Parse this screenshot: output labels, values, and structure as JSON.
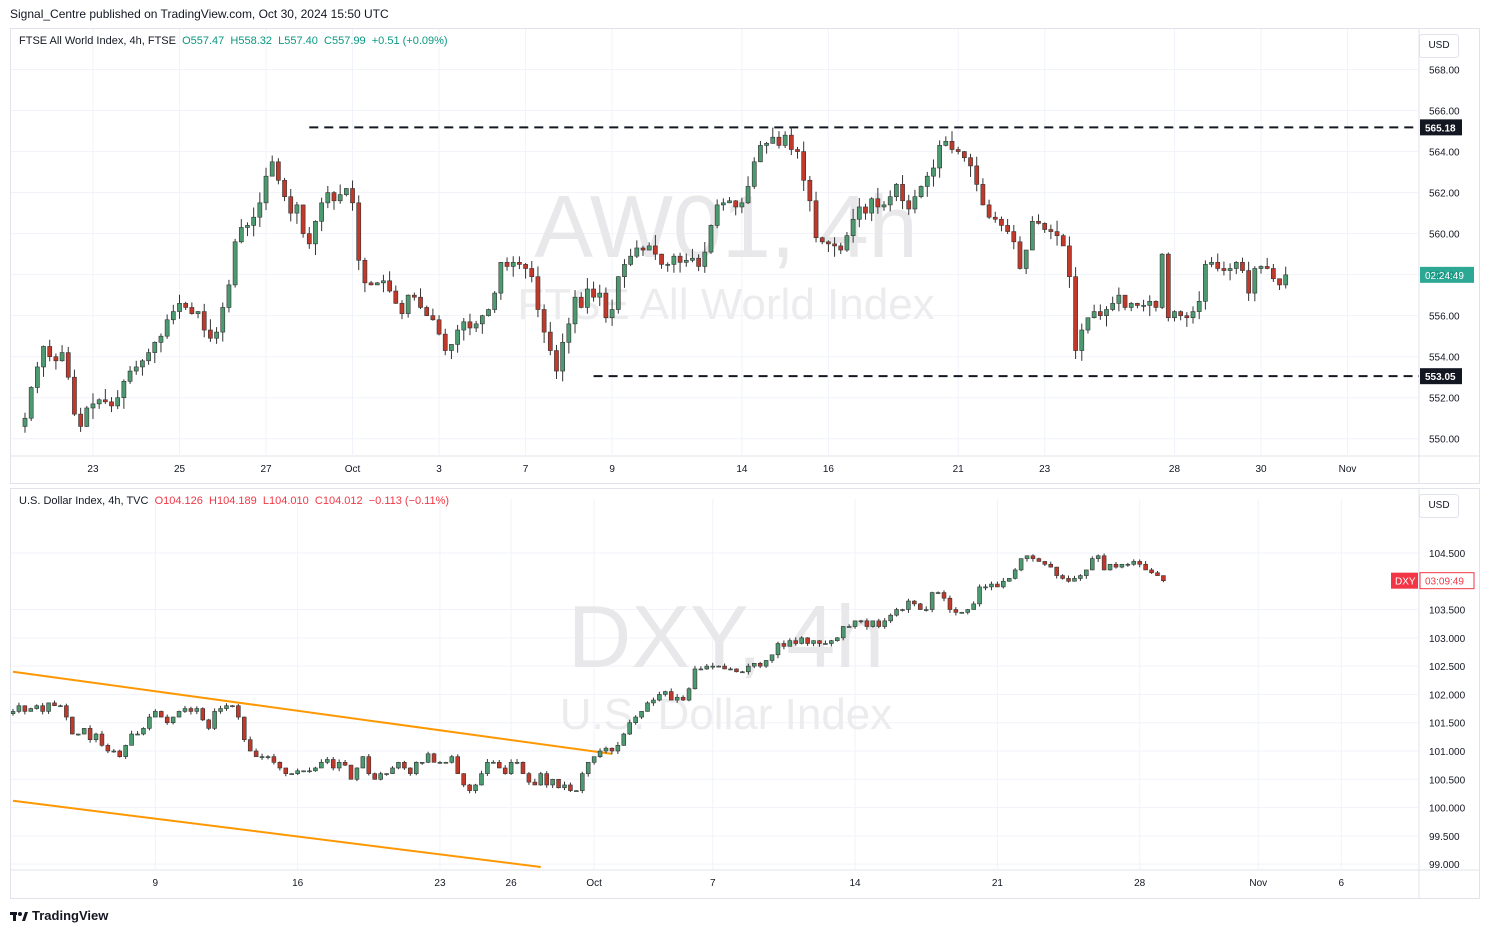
{
  "header": {
    "published_by": "Signal_Centre published on TradingView.com, Oct 30, 2024 15:50 UTC"
  },
  "footer": {
    "brand": "TradingView"
  },
  "colors": {
    "up": "#089981",
    "down": "#f23645",
    "body_up": "#4c9a70",
    "body_down": "#c0392b",
    "grid": "#f0f3fa",
    "trend": "#ff9800",
    "level": "#131722"
  },
  "panes": [
    {
      "id": "ftse",
      "symbol": "FTSE All World Index",
      "interval": "4h",
      "exchange": "FTSE",
      "ohlc": {
        "o": "O557.47",
        "h": "H558.32",
        "l": "L557.40",
        "c": "C557.99",
        "chg": "+0.51 (+0.09%)"
      },
      "currency": "USD",
      "watermark_main": "AW01, 4h",
      "watermark_sub": "FTSE All World Index",
      "countdown_label": "02:24:49",
      "levels": [
        {
          "label": "565.18",
          "value": 565.18
        },
        {
          "label": "553.05",
          "value": 553.05
        }
      ]
    },
    {
      "id": "dxy",
      "symbol": "U.S. Dollar Index",
      "interval": "4h",
      "exchange": "TVC",
      "ohlc": {
        "o": "O104.126",
        "h": "H104.189",
        "l": "L104.010",
        "c": "C104.012",
        "chg": "−0.113 (−0.11%)"
      },
      "currency": "USD",
      "watermark_main": "DXY, 4h",
      "watermark_sub": "U.S. Dollar Index",
      "countdown_ticker": "DXY",
      "countdown_label": "03:09:49"
    }
  ],
  "chart_data": [
    {
      "type": "candlestick",
      "title": "FTSE All World Index, 4h, FTSE",
      "ylim": [
        549.5,
        569.0
      ],
      "y_ticks": [
        "568.00",
        "566.00",
        "564.00",
        "562.00",
        "560.00",
        "558.00",
        "556.00",
        "554.00",
        "552.00",
        "550.00"
      ],
      "y_tick_values": [
        568,
        566,
        564,
        562,
        560,
        558,
        556,
        554,
        552,
        550
      ],
      "x_ticks": [
        "23",
        "25",
        "27",
        "Oct",
        "3",
        "7",
        "9",
        "14",
        "16",
        "21",
        "23",
        "28",
        "30",
        "Nov"
      ],
      "x_tick_index": [
        11,
        25,
        39,
        53,
        67,
        81,
        95,
        116,
        130,
        151,
        165,
        186,
        200,
        214
      ],
      "series": [
        {
          "values": [
            551.0,
            552.5,
            553.5,
            554.5,
            554.0,
            553.8,
            554.2,
            553.0,
            551.2,
            550.6,
            551.5,
            551.7,
            551.9,
            551.8,
            551.6,
            552.0,
            552.8,
            553.3,
            553.5,
            553.8,
            554.2,
            554.7,
            555.0,
            555.8,
            556.2,
            556.6,
            556.4,
            556.1,
            556.2,
            555.3,
            554.9,
            555.2,
            556.4,
            557.5,
            559.6,
            560.3,
            560.4,
            560.8,
            561.5,
            562.8,
            563.5,
            562.6,
            561.8,
            561.0,
            561.4,
            560.0,
            559.5,
            560.6,
            561.5,
            562.0,
            561.6,
            561.9,
            562.2,
            561.5,
            558.7,
            557.6,
            557.5,
            557.6,
            557.7,
            557.2,
            556.6,
            556.1,
            557.0,
            556.9,
            556.4,
            556.0,
            555.8,
            555.1,
            554.3,
            554.6,
            555.3,
            555.7,
            555.4,
            555.6,
            556.0,
            556.3,
            557.1,
            558.6,
            558.4,
            558.6,
            558.5,
            558.3,
            557.9,
            556.3,
            555.2,
            554.3,
            553.3,
            554.7,
            555.6,
            556.9,
            556.4,
            557.3,
            556.9,
            557.1,
            555.9,
            556.3,
            557.9,
            558.5,
            558.9,
            559.3,
            559.2,
            559.4,
            559.0,
            558.5,
            558.5,
            558.9,
            558.6,
            558.7,
            558.8,
            558.4,
            559.1,
            560.4,
            561.4,
            561.5,
            561.6,
            561.3,
            561.5,
            562.3,
            563.5,
            564.3,
            564.4,
            564.7,
            564.3,
            564.8,
            564.1,
            564.0,
            562.6,
            561.6,
            559.8,
            559.6,
            559.5,
            559.4,
            559.2,
            559.9,
            560.7,
            561.3,
            561.0,
            561.7,
            561.3,
            561.4,
            561.8,
            562.4,
            561.6,
            561.2,
            561.8,
            562.3,
            562.8,
            563.2,
            564.3,
            564.5,
            564.1,
            564.0,
            563.7,
            563.3,
            562.4,
            561.4,
            560.8,
            560.7,
            560.4,
            560.1,
            559.6,
            558.3,
            559.2,
            560.6,
            560.5,
            560.2,
            560.1,
            559.9,
            559.4,
            557.9,
            554.3,
            555.3,
            555.9,
            556.2,
            556.0,
            556.3,
            556.6,
            557.0,
            556.4,
            556.6,
            556.5,
            556.5,
            556.7,
            556.4,
            559.0,
            555.9,
            556.2,
            556.0,
            555.9,
            556.2,
            556.7,
            558.5,
            558.6,
            558.3,
            558.2,
            558.3,
            558.6,
            558.2,
            557.1,
            558.3,
            558.4,
            558.3,
            557.8,
            557.5,
            557.99
          ]
        }
      ],
      "levels": [
        565.18,
        553.05
      ]
    },
    {
      "type": "candlestick",
      "title": "U.S. Dollar Index, 4h, TVC",
      "ylim": [
        98.95,
        105.1
      ],
      "y_ticks": [
        "104.500",
        "103.500",
        "103.000",
        "102.500",
        "102.000",
        "101.500",
        "101.000",
        "100.500",
        "100.000",
        "99.500",
        "99.000"
      ],
      "y_tick_values": [
        104.5,
        103.5,
        103.0,
        102.5,
        102.0,
        101.5,
        101.0,
        100.5,
        100.0,
        99.5,
        99.0
      ],
      "x_ticks": [
        "9",
        "16",
        "23",
        "26",
        "Oct",
        "7",
        "14",
        "21",
        "28",
        "Nov",
        "6"
      ],
      "x_tick_index": [
        24,
        48,
        72,
        84,
        98,
        118,
        142,
        166,
        190,
        210,
        224
      ],
      "series": [
        {
          "values": [
            101.7,
            101.8,
            101.7,
            101.75,
            101.8,
            101.7,
            101.85,
            101.8,
            101.8,
            101.6,
            101.3,
            101.3,
            101.4,
            101.2,
            101.3,
            101.1,
            101.0,
            101.0,
            100.9,
            101.1,
            101.3,
            101.3,
            101.4,
            101.6,
            101.7,
            101.6,
            101.5,
            101.6,
            101.7,
            101.75,
            101.7,
            101.75,
            101.55,
            101.4,
            101.7,
            101.75,
            101.8,
            101.8,
            101.6,
            101.2,
            101.0,
            100.9,
            100.9,
            100.9,
            100.8,
            100.7,
            100.6,
            100.6,
            100.65,
            100.65,
            100.65,
            100.7,
            100.8,
            100.85,
            100.7,
            100.8,
            100.75,
            100.5,
            100.7,
            100.9,
            100.6,
            100.5,
            100.6,
            100.6,
            100.7,
            100.8,
            100.7,
            100.6,
            100.8,
            100.8,
            100.95,
            100.8,
            100.8,
            100.8,
            100.9,
            100.6,
            100.4,
            100.3,
            100.4,
            100.6,
            100.8,
            100.8,
            100.7,
            100.6,
            100.8,
            100.8,
            100.6,
            100.45,
            100.4,
            100.6,
            100.4,
            100.5,
            100.35,
            100.4,
            100.3,
            100.3,
            100.6,
            100.8,
            100.9,
            101.0,
            101.05,
            101.0,
            101.1,
            101.3,
            101.5,
            101.6,
            101.7,
            101.85,
            101.9,
            102.0,
            102.05,
            101.9,
            101.95,
            101.9,
            102.1,
            102.45,
            102.45,
            102.5,
            102.5,
            102.5,
            102.45,
            102.45,
            102.4,
            102.4,
            102.5,
            102.55,
            102.5,
            102.6,
            102.7,
            102.9,
            102.85,
            102.95,
            102.9,
            103.0,
            102.9,
            102.95,
            102.9,
            102.9,
            102.95,
            103.0,
            103.2,
            103.2,
            103.3,
            103.3,
            103.2,
            103.3,
            103.2,
            103.3,
            103.4,
            103.5,
            103.5,
            103.65,
            103.6,
            103.5,
            103.5,
            103.8,
            103.8,
            103.7,
            103.5,
            103.45,
            103.45,
            103.5,
            103.6,
            103.9,
            103.9,
            103.95,
            103.9,
            104.0,
            104.05,
            104.2,
            104.4,
            104.45,
            104.4,
            104.35,
            104.3,
            104.25,
            104.1,
            104.05,
            104.0,
            104.05,
            104.1,
            104.2,
            104.4,
            104.45,
            104.2,
            104.3,
            104.25,
            104.3,
            104.3,
            104.35,
            104.3,
            104.2,
            104.15,
            104.1,
            104.01
          ]
        }
      ],
      "trendlines": [
        {
          "from_index": 0,
          "from_value": 102.4,
          "to_index": 101,
          "to_value": 100.95
        },
        {
          "from_index": 0,
          "from_value": 100.12,
          "to_index": 89,
          "to_value": 98.95
        }
      ]
    }
  ]
}
